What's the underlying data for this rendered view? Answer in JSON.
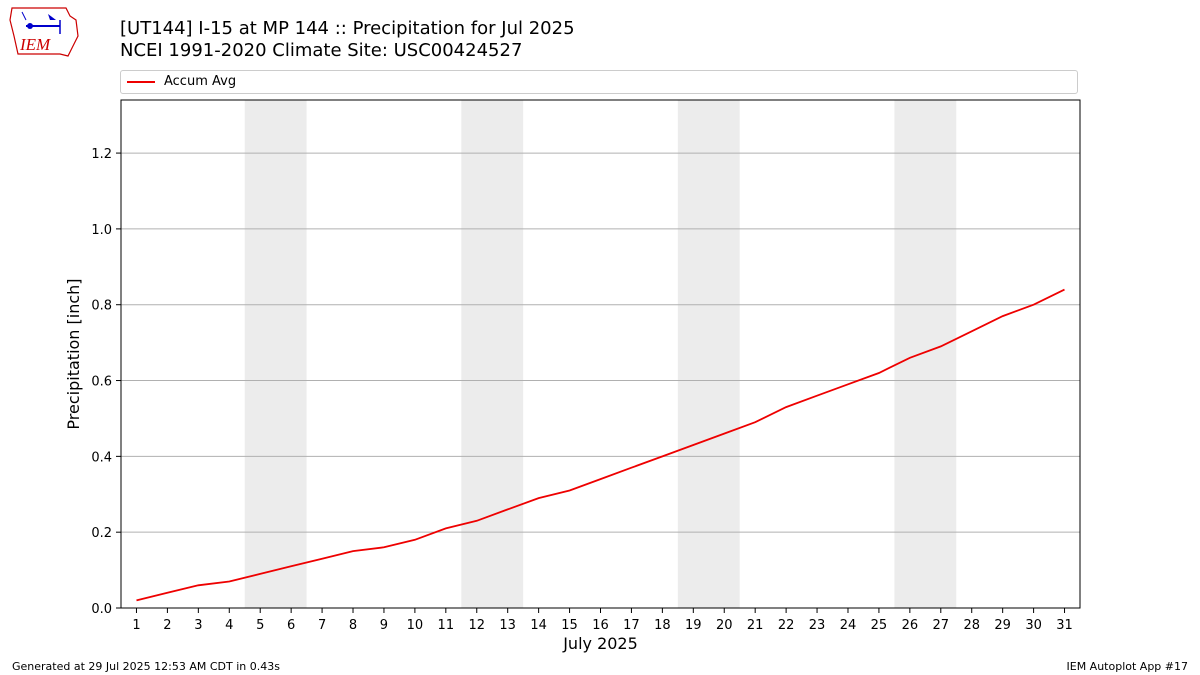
{
  "header": {
    "title_line1": "[UT144] I-15 at MP 144  :: Precipitation for Jul 2025",
    "title_line2": "NCEI 1991-2020 Climate Site: USC00424527"
  },
  "logo": {
    "text": "IEM",
    "color": "#cc0000",
    "accent": "#0000cc"
  },
  "footer": {
    "left": "Generated at 29 Jul 2025 12:53 AM CDT in 0.43s",
    "right": "IEM Autoplot App #17"
  },
  "colors": {
    "line": "#ee0000",
    "weekend_band": "#ececec",
    "grid": "#b0b0b0"
  },
  "chart_data": {
    "type": "line",
    "xlabel": "July 2025",
    "ylabel": "Precipitation [inch]",
    "x": [
      1,
      2,
      3,
      4,
      5,
      6,
      7,
      8,
      9,
      10,
      11,
      12,
      13,
      14,
      15,
      16,
      17,
      18,
      19,
      20,
      21,
      22,
      23,
      24,
      25,
      26,
      27,
      28,
      29,
      30,
      31
    ],
    "xlim": [
      0.5,
      31.5
    ],
    "ylim": [
      0,
      1.34
    ],
    "yticks": [
      0.0,
      0.2,
      0.4,
      0.6,
      0.8,
      1.0,
      1.2
    ],
    "ytick_labels": [
      "0.0",
      "0.2",
      "0.4",
      "0.6",
      "0.8",
      "1.0",
      "1.2"
    ],
    "grid": "horizontal",
    "legend_position": "top",
    "weekend_bands": [
      [
        4.5,
        6.5
      ],
      [
        11.5,
        13.5
      ],
      [
        18.5,
        20.5
      ],
      [
        25.5,
        27.5
      ]
    ],
    "series": [
      {
        "name": "Accum Avg",
        "color": "#ee0000",
        "values": [
          0.02,
          0.04,
          0.06,
          0.07,
          0.09,
          0.11,
          0.13,
          0.15,
          0.16,
          0.18,
          0.21,
          0.23,
          0.26,
          0.29,
          0.31,
          0.34,
          0.37,
          0.4,
          0.43,
          0.46,
          0.49,
          0.53,
          0.56,
          0.59,
          0.62,
          0.66,
          0.69,
          0.73,
          0.77,
          0.8,
          0.84
        ]
      }
    ]
  }
}
